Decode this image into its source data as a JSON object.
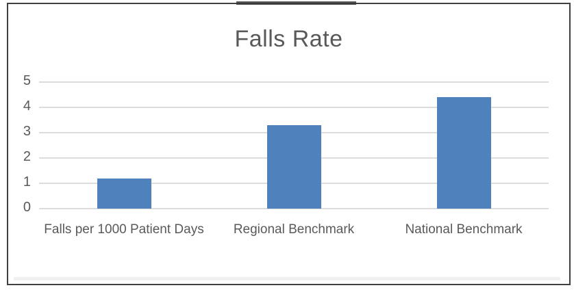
{
  "chart": {
    "title": "Falls Rate",
    "colors": {
      "bar": "#4F81BD",
      "text": "#595959",
      "gridline": "#DCDCDC",
      "frame_border": "#3F3F3F",
      "background": "#FFFFFF"
    }
  },
  "chart_data": {
    "type": "bar",
    "title": "Falls Rate",
    "categories": [
      "Falls per 1000 Patient Days",
      "Regional Benchmark",
      "National Benchmark"
    ],
    "values": [
      1.2,
      3.3,
      4.4
    ],
    "xlabel": "",
    "ylabel": "",
    "ylim": [
      0,
      5
    ],
    "yticks": [
      0,
      1,
      2,
      3,
      4,
      5
    ],
    "grid": true,
    "legend": false
  }
}
